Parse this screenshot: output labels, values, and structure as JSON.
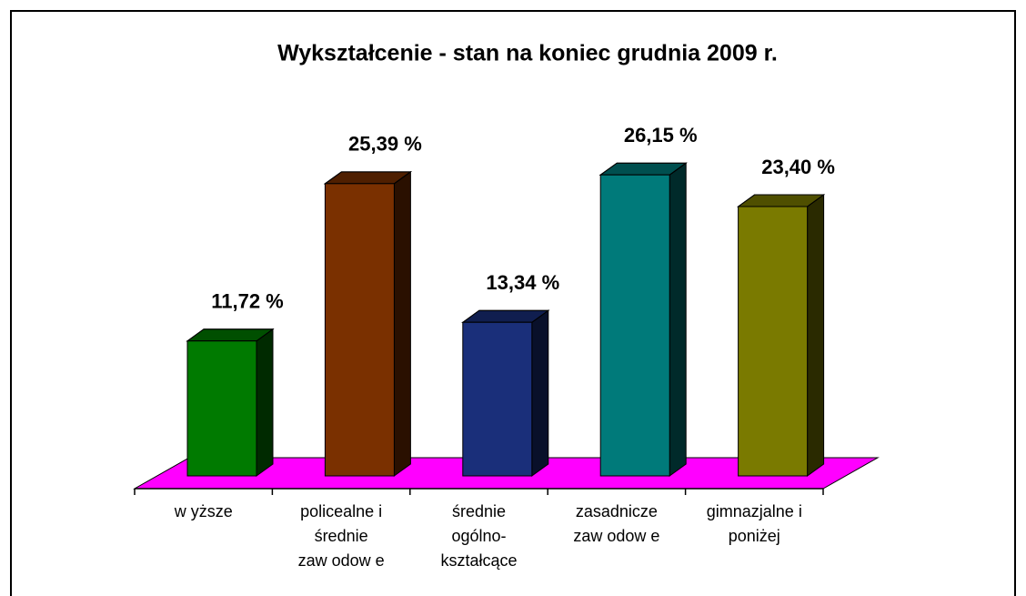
{
  "chart_data": {
    "type": "bar3d",
    "title": "Wykształcenie - stan na koniec grudnia 2009 r.",
    "categories": [
      [
        "w yższe"
      ],
      [
        "policealne i",
        "średnie",
        "zaw odow e"
      ],
      [
        "średnie",
        "ogólno-",
        "kształcące"
      ],
      [
        "zasadnicze",
        "zaw odow e"
      ],
      [
        "gimnazjalne i",
        "poniżej"
      ]
    ],
    "values": [
      11.72,
      25.39,
      13.34,
      26.15,
      23.4
    ],
    "value_labels": [
      "11,72 %",
      "25,39 %",
      "13,34 %",
      "26,15 %",
      "23,40 %"
    ],
    "colors": [
      "#007a00",
      "#7a3000",
      "#1a2f7a",
      "#007a7a",
      "#7a7a00"
    ],
    "floor_color": "#ff00ff"
  }
}
